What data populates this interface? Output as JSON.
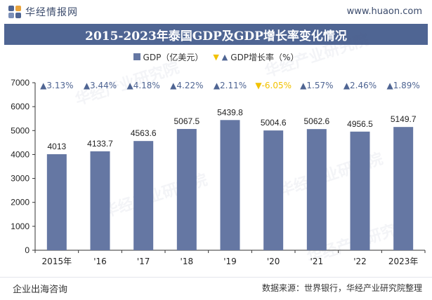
{
  "header": {
    "logo_text": "华经情报网",
    "site_url": "www.huaon.com"
  },
  "title": "2015-2023年泰国GDP及GDP增长率变化情况",
  "legend": {
    "gdp": "GDP（亿美元）",
    "growth": "GDP增长率（%）"
  },
  "watermark": "华经产业研究院",
  "footer": {
    "left": "企业出海咨询",
    "right": "数据来源：世界银行，华经产业研究院整理"
  },
  "colors": {
    "bar": "#6577a3",
    "title_bg": "#4f6593",
    "up": "#4f6593",
    "down": "#f2c200"
  },
  "chart_data": {
    "type": "bar",
    "categories": [
      "2015年",
      "'16",
      "'17",
      "'18",
      "'19",
      "'20",
      "'21",
      "'22",
      "2023年"
    ],
    "series": [
      {
        "name": "GDP（亿美元）",
        "values": [
          4013,
          4133.7,
          4563.6,
          5067.5,
          5439.8,
          5004.6,
          5062.6,
          4956.5,
          5149.7
        ]
      },
      {
        "name": "GDP增长率（%）",
        "values": [
          3.13,
          3.44,
          4.18,
          4.22,
          2.11,
          -6.05,
          1.57,
          2.46,
          1.89
        ]
      }
    ],
    "value_labels": [
      "4013",
      "4133.7",
      "4563.6",
      "5067.5",
      "5439.8",
      "5004.6",
      "5062.6",
      "4956.5",
      "5149.7"
    ],
    "growth_labels": [
      "▲3.13%",
      "▲3.44%",
      "▲4.18%",
      "▲4.22%",
      "▲2.11%",
      "▼-6.05%",
      "▲1.57%",
      "▲2.46%",
      "▲1.89%"
    ],
    "yticks": [
      "0",
      "1000",
      "2000",
      "3000",
      "4000",
      "5000",
      "6000",
      "7000"
    ],
    "ylim": [
      0,
      7000
    ],
    "grid": false
  }
}
